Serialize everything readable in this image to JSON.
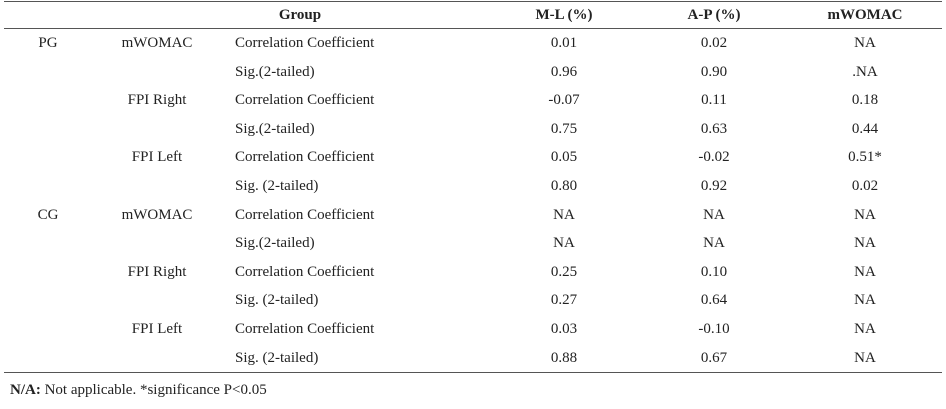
{
  "table": {
    "headers": {
      "group": "Group",
      "ml": "M-L (%)",
      "ap": "A-P (%)",
      "mwomac": "mWOMAC"
    },
    "rows": [
      {
        "group": "PG",
        "variable": "mWOMAC",
        "stat": "Correlation Coefficient",
        "ml": "0.01",
        "ap": "0.02",
        "mwomac": "NA"
      },
      {
        "group": "",
        "variable": "",
        "stat": "Sig.(2-tailed)",
        "ml": "0.96",
        "ap": "0.90",
        "mwomac": ".NA"
      },
      {
        "group": "",
        "variable": "FPI Right",
        "stat": "Correlation Coefficient",
        "ml": "-0.07",
        "ap": "0.11",
        "mwomac": "0.18"
      },
      {
        "group": "",
        "variable": "",
        "stat": "Sig.(2-tailed)",
        "ml": "0.75",
        "ap": "0.63",
        "mwomac": "0.44"
      },
      {
        "group": "",
        "variable": "FPI Left",
        "stat": "Correlation Coefficient",
        "ml": "0.05",
        "ap": "-0.02",
        "mwomac": "0.51*"
      },
      {
        "group": "",
        "variable": "",
        "stat": "Sig. (2-tailed)",
        "ml": "0.80",
        "ap": "0.92",
        "mwomac": "0.02"
      },
      {
        "group": "CG",
        "variable": "mWOMAC",
        "stat": "Correlation Coefficient",
        "ml": "NA",
        "ap": "NA",
        "mwomac": "NA"
      },
      {
        "group": "",
        "variable": "",
        "stat": "Sig.(2-tailed)",
        "ml": "NA",
        "ap": "NA",
        "mwomac": "NA"
      },
      {
        "group": "",
        "variable": "FPI Right",
        "stat": "Correlation Coefficient",
        "ml": "0.25",
        "ap": "0.10",
        "mwomac": "NA"
      },
      {
        "group": "",
        "variable": "",
        "stat": "Sig. (2-tailed)",
        "ml": "0.27",
        "ap": "0.64",
        "mwomac": "NA"
      },
      {
        "group": "",
        "variable": "FPI Left",
        "stat": "Correlation Coefficient",
        "ml": "0.03",
        "ap": "-0.10",
        "mwomac": "NA"
      },
      {
        "group": "",
        "variable": "",
        "stat": "Sig. (2-tailed)",
        "ml": "0.88",
        "ap": "0.67",
        "mwomac": "NA"
      }
    ]
  },
  "footnote": {
    "abbr": "N/A:",
    "text": " Not applicable. *significance P<0.05"
  }
}
